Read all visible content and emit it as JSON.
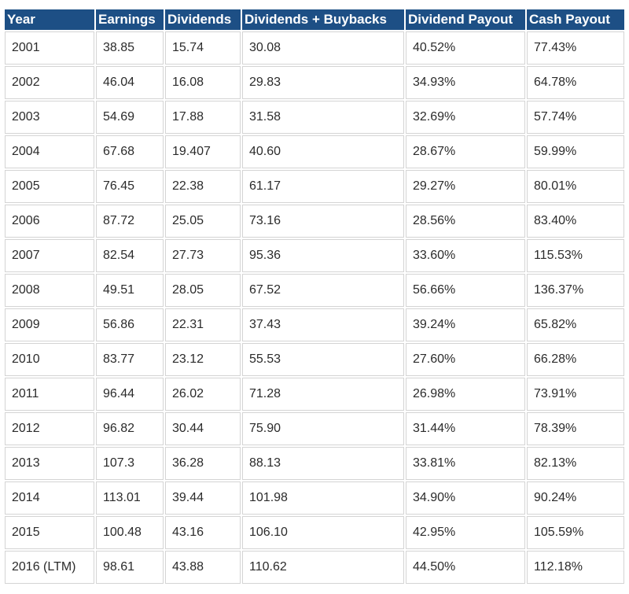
{
  "table": {
    "headers": [
      "Year",
      "Earnings",
      "Dividends",
      "Dividends + Buybacks",
      "Dividend Payout",
      "Cash Payout"
    ],
    "rows": [
      [
        "2001",
        "38.85",
        "15.74",
        "30.08",
        "40.52%",
        "77.43%"
      ],
      [
        "2002",
        "46.04",
        "16.08",
        "29.83",
        "34.93%",
        "64.78%"
      ],
      [
        "2003",
        "54.69",
        "17.88",
        "31.58",
        "32.69%",
        "57.74%"
      ],
      [
        "2004",
        "67.68",
        "19.407",
        "40.60",
        "28.67%",
        "59.99%"
      ],
      [
        "2005",
        "76.45",
        "22.38",
        "61.17",
        "29.27%",
        "80.01%"
      ],
      [
        "2006",
        "87.72",
        "25.05",
        "73.16",
        "28.56%",
        "83.40%"
      ],
      [
        "2007",
        "82.54",
        "27.73",
        "95.36",
        "33.60%",
        "115.53%"
      ],
      [
        "2008",
        "49.51",
        "28.05",
        "67.52",
        "56.66%",
        "136.37%"
      ],
      [
        "2009",
        "56.86",
        "22.31",
        "37.43",
        "39.24%",
        "65.82%"
      ],
      [
        "2010",
        "83.77",
        "23.12",
        "55.53",
        "27.60%",
        "66.28%"
      ],
      [
        "2011",
        "96.44",
        "26.02",
        "71.28",
        "26.98%",
        "73.91%"
      ],
      [
        "2012",
        "96.82",
        "30.44",
        "75.90",
        "31.44%",
        "78.39%"
      ],
      [
        "2013",
        "107.3",
        "36.28",
        "88.13",
        "33.81%",
        "82.13%"
      ],
      [
        "2014",
        "113.01",
        "39.44",
        "101.98",
        "34.90%",
        "90.24%"
      ],
      [
        "2015",
        "100.48",
        "43.16",
        "106.10",
        "42.95%",
        "105.59%"
      ],
      [
        "2016 (LTM)",
        "98.61",
        "43.88",
        "110.62",
        "44.50%",
        "112.18%"
      ]
    ]
  },
  "colors": {
    "header_bg": "#1d4f85",
    "header_text": "#ffffff",
    "cell_border": "#d4d4d4",
    "cell_text": "#2b2b2b"
  }
}
